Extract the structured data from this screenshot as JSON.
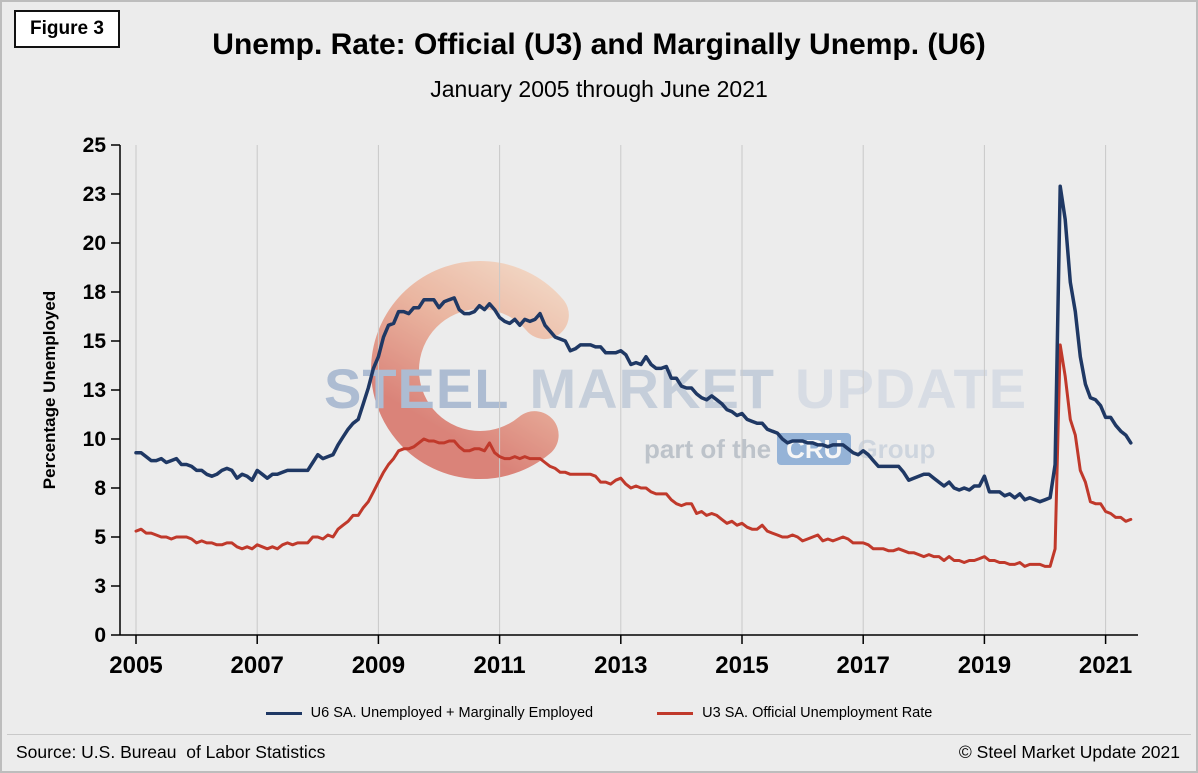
{
  "figure_label": "Figure 3",
  "title": "Unemp. Rate: Official (U3) and Marginally Unemp. (U6)",
  "subtitle": "January 2005 through June 2021",
  "y_axis_label": "Percentage Unemployed",
  "source": "Source: U.S. Bureau  of Labor Statistics",
  "copyright": "© Steel Market Update 2021",
  "watermark": {
    "steel": "STEEL",
    "market": "MARKET",
    "update": "UPDATE",
    "part_of": "part of the",
    "cru": "CRU",
    "group": "Group"
  },
  "legend": [
    {
      "label": "U6 SA. Unemployed + Marginally Employed",
      "color": "#1f3864"
    },
    {
      "label": "U3 SA. Official Unemployment Rate",
      "color": "#c0392b"
    }
  ],
  "colors": {
    "u6_line": "#1f3864",
    "u3_line": "#c0392b",
    "background": "#ececec",
    "gridline": "#c9c9c9",
    "axis": "#000000"
  },
  "chart_data": {
    "type": "line",
    "title": "Unemp. Rate: Official (U3) and Marginally Unemp. (U6)",
    "subtitle": "January 2005 through June 2021",
    "xlabel": "",
    "ylabel": "Percentage Unemployed",
    "frequency": "monthly",
    "x_start": "2005-01",
    "x_end": "2021-06",
    "x_tick_labels": [
      "2005",
      "2007",
      "2009",
      "2011",
      "2013",
      "2015",
      "2017",
      "2019",
      "2021"
    ],
    "y_ticks": [
      0,
      2.5,
      5,
      7.5,
      10,
      12.5,
      15,
      17.5,
      20,
      22.5,
      25
    ],
    "y_tick_labels": [
      "0",
      "3",
      "5",
      "8",
      "10",
      "13",
      "15",
      "18",
      "20",
      "23",
      "25"
    ],
    "ylim": [
      0,
      25
    ],
    "grid": "vertical-only",
    "legend_position": "bottom",
    "series": [
      {
        "name": "U6 SA. Unemployed + Marginally Employed",
        "color": "#1f3864",
        "values": [
          9.3,
          9.3,
          9.1,
          8.9,
          8.9,
          9.0,
          8.8,
          8.9,
          9.0,
          8.7,
          8.7,
          8.6,
          8.4,
          8.4,
          8.2,
          8.1,
          8.2,
          8.4,
          8.5,
          8.4,
          8.0,
          8.2,
          8.1,
          7.9,
          8.4,
          8.2,
          8.0,
          8.2,
          8.2,
          8.3,
          8.4,
          8.4,
          8.4,
          8.4,
          8.4,
          8.8,
          9.2,
          9.0,
          9.1,
          9.2,
          9.7,
          10.1,
          10.5,
          10.8,
          11.0,
          11.8,
          12.6,
          13.6,
          14.2,
          15.2,
          15.8,
          15.9,
          16.5,
          16.5,
          16.4,
          16.7,
          16.7,
          17.1,
          17.1,
          17.1,
          16.7,
          17.0,
          17.1,
          17.2,
          16.6,
          16.4,
          16.4,
          16.5,
          16.8,
          16.6,
          16.9,
          16.6,
          16.2,
          16.0,
          15.9,
          16.1,
          15.8,
          16.1,
          16.0,
          16.1,
          16.4,
          15.8,
          15.5,
          15.2,
          15.1,
          15.0,
          14.5,
          14.6,
          14.8,
          14.8,
          14.8,
          14.7,
          14.7,
          14.4,
          14.4,
          14.4,
          14.5,
          14.3,
          13.8,
          13.9,
          13.8,
          14.2,
          13.8,
          13.6,
          13.6,
          13.7,
          13.1,
          13.1,
          12.7,
          12.6,
          12.6,
          12.3,
          12.1,
          12.0,
          12.2,
          12.0,
          11.8,
          11.5,
          11.4,
          11.2,
          11.3,
          11.0,
          10.9,
          10.8,
          10.8,
          10.5,
          10.4,
          10.3,
          10.0,
          9.8,
          9.9,
          9.9,
          9.9,
          9.8,
          9.8,
          9.7,
          9.7,
          9.6,
          9.7,
          9.7,
          9.7,
          9.5,
          9.3,
          9.2,
          9.4,
          9.2,
          8.9,
          8.6,
          8.6,
          8.6,
          8.6,
          8.6,
          8.3,
          7.9,
          8.0,
          8.1,
          8.2,
          8.2,
          8.0,
          7.8,
          7.6,
          7.8,
          7.5,
          7.4,
          7.5,
          7.4,
          7.6,
          7.6,
          8.1,
          7.3,
          7.3,
          7.3,
          7.1,
          7.2,
          7.0,
          7.2,
          6.9,
          7.0,
          6.9,
          6.8,
          6.9,
          7.0,
          8.7,
          22.9,
          21.2,
          18.0,
          16.5,
          14.2,
          12.8,
          12.1,
          12.0,
          11.7,
          11.1,
          11.1,
          10.7,
          10.4,
          10.2,
          9.8
        ]
      },
      {
        "name": "U3 SA. Official Unemployment Rate",
        "color": "#c0392b",
        "values": [
          5.3,
          5.4,
          5.2,
          5.2,
          5.1,
          5.0,
          5.0,
          4.9,
          5.0,
          5.0,
          5.0,
          4.9,
          4.7,
          4.8,
          4.7,
          4.7,
          4.6,
          4.6,
          4.7,
          4.7,
          4.5,
          4.4,
          4.5,
          4.4,
          4.6,
          4.5,
          4.4,
          4.5,
          4.4,
          4.6,
          4.7,
          4.6,
          4.7,
          4.7,
          4.7,
          5.0,
          5.0,
          4.9,
          5.1,
          5.0,
          5.4,
          5.6,
          5.8,
          6.1,
          6.1,
          6.5,
          6.8,
          7.3,
          7.8,
          8.3,
          8.7,
          9.0,
          9.4,
          9.5,
          9.5,
          9.6,
          9.8,
          10.0,
          9.9,
          9.9,
          9.8,
          9.8,
          9.9,
          9.9,
          9.6,
          9.4,
          9.4,
          9.5,
          9.5,
          9.4,
          9.8,
          9.3,
          9.1,
          9.0,
          9.0,
          9.1,
          9.0,
          9.1,
          9.0,
          9.0,
          9.0,
          8.8,
          8.6,
          8.5,
          8.3,
          8.3,
          8.2,
          8.2,
          8.2,
          8.2,
          8.2,
          8.1,
          7.8,
          7.8,
          7.7,
          7.9,
          8.0,
          7.7,
          7.5,
          7.6,
          7.5,
          7.5,
          7.3,
          7.2,
          7.2,
          7.2,
          6.9,
          6.7,
          6.6,
          6.7,
          6.7,
          6.2,
          6.3,
          6.1,
          6.2,
          6.1,
          5.9,
          5.7,
          5.8,
          5.6,
          5.7,
          5.5,
          5.4,
          5.4,
          5.6,
          5.3,
          5.2,
          5.1,
          5.0,
          5.0,
          5.1,
          5.0,
          4.8,
          4.9,
          5.0,
          5.1,
          4.8,
          4.9,
          4.8,
          4.9,
          5.0,
          4.9,
          4.7,
          4.7,
          4.7,
          4.6,
          4.4,
          4.4,
          4.4,
          4.3,
          4.3,
          4.4,
          4.3,
          4.2,
          4.2,
          4.1,
          4.0,
          4.1,
          4.0,
          4.0,
          3.8,
          4.0,
          3.8,
          3.8,
          3.7,
          3.8,
          3.8,
          3.9,
          4.0,
          3.8,
          3.8,
          3.7,
          3.7,
          3.6,
          3.6,
          3.7,
          3.5,
          3.6,
          3.6,
          3.6,
          3.5,
          3.5,
          4.4,
          14.8,
          13.2,
          11.0,
          10.2,
          8.4,
          7.8,
          6.8,
          6.7,
          6.7,
          6.3,
          6.2,
          6.0,
          6.0,
          5.8,
          5.9
        ]
      }
    ]
  }
}
